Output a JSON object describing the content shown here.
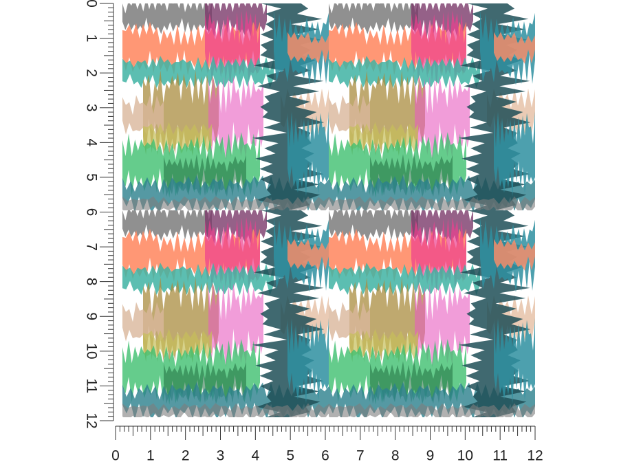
{
  "rulers": {
    "left": {
      "labels": [
        0,
        1,
        2,
        3,
        4,
        5,
        6,
        7,
        8,
        9,
        10,
        11,
        12
      ]
    },
    "bottom": {
      "labels": [
        0,
        1,
        2,
        3,
        4,
        5,
        6,
        7,
        8,
        9,
        10,
        11,
        12
      ]
    }
  }
}
